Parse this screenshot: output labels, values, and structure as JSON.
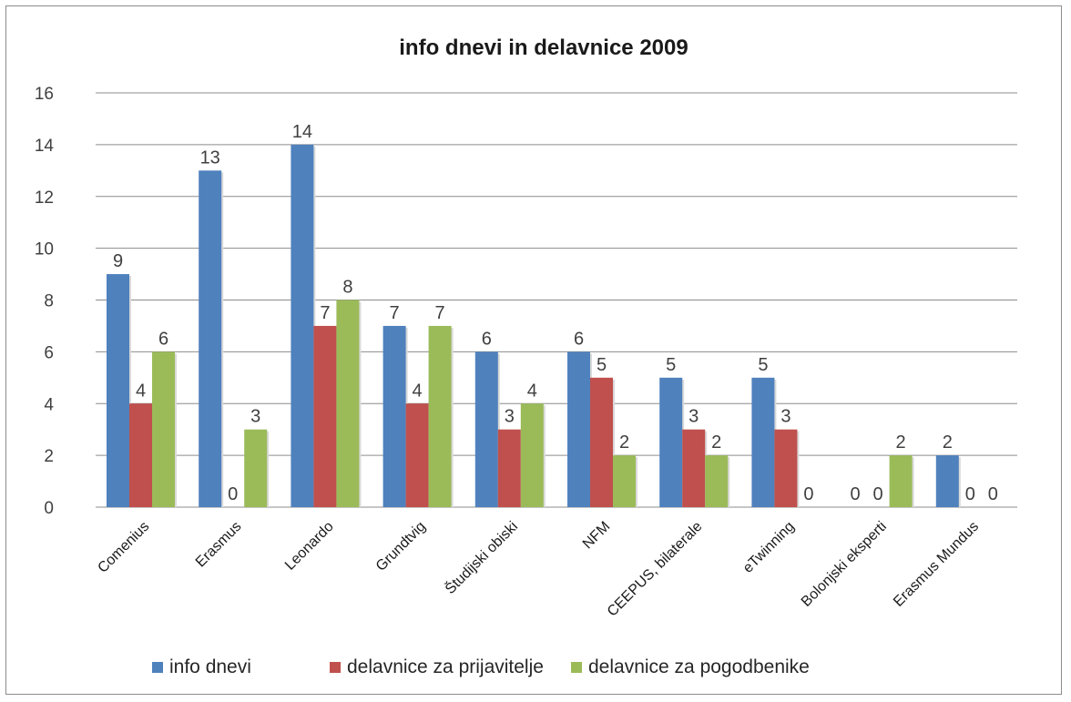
{
  "chart_data": {
    "type": "bar",
    "title": "info dnevi in delavnice 2009",
    "categories": [
      "Comenius",
      "Erasmus",
      "Leonardo",
      "Grundtvig",
      "Študijski obiski",
      "NFM",
      "CEEPUS, bilaterale",
      "eTwinning",
      "Bolonjski eksperti",
      "Erasmus Mundus"
    ],
    "series": [
      {
        "name": "info dnevi",
        "color": "#4f81bd",
        "values": [
          9,
          13,
          14,
          7,
          6,
          6,
          5,
          5,
          0,
          2
        ]
      },
      {
        "name": "delavnice za prijavitelje",
        "color": "#c0504d",
        "values": [
          4,
          0,
          7,
          4,
          3,
          5,
          3,
          3,
          0,
          0
        ]
      },
      {
        "name": "delavnice za pogodbenike",
        "color": "#9bbb59",
        "values": [
          6,
          3,
          8,
          7,
          4,
          2,
          2,
          0,
          2,
          0
        ]
      }
    ],
    "ylim": [
      0,
      16
    ],
    "yticks": [
      0,
      2,
      4,
      6,
      8,
      10,
      12,
      14,
      16
    ],
    "grid": true,
    "legend_position": "bottom"
  }
}
